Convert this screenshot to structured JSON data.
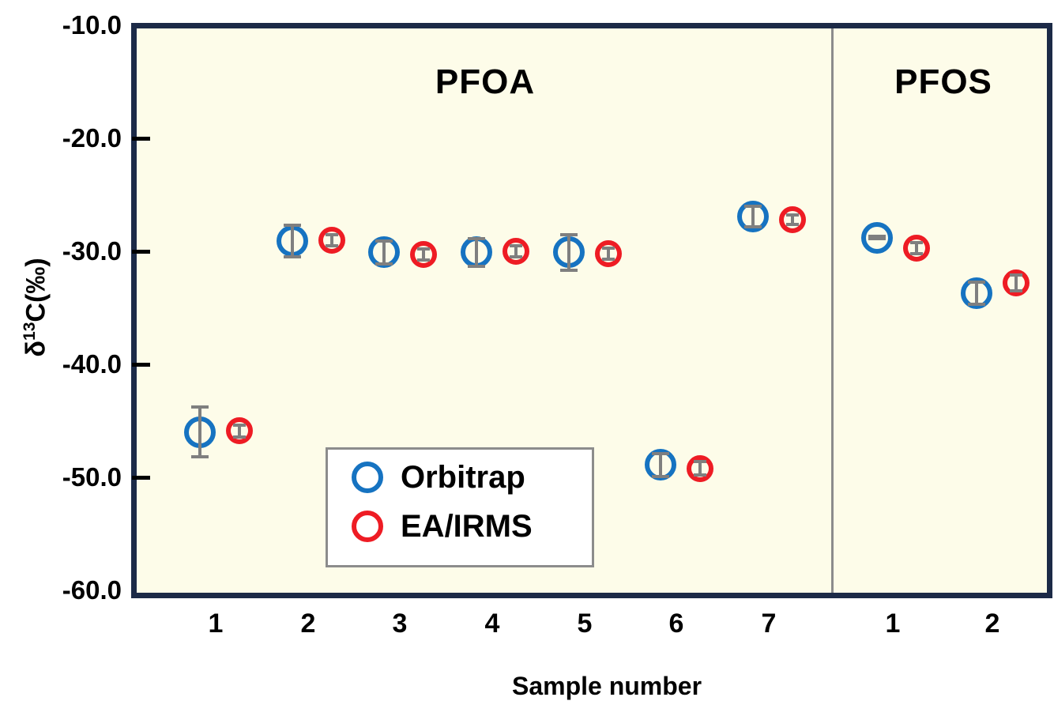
{
  "chart_data": {
    "type": "scatter",
    "xlabel": "Sample number",
    "ylabel": "δ13C(‰)",
    "ylabel_parts": {
      "delta": "δ",
      "superscript": "13",
      "rest": "C(‰)"
    },
    "ylim": [
      -60.0,
      -10.0
    ],
    "grid": false,
    "legend_position": "inside-lower-left",
    "yticks": [
      {
        "value": -10,
        "label": "-10.0"
      },
      {
        "value": -20,
        "label": "-20.0"
      },
      {
        "value": -30,
        "label": "-30.0"
      },
      {
        "value": -40,
        "label": "-40.0"
      },
      {
        "value": -50,
        "label": "-50.0"
      },
      {
        "value": -60,
        "label": "-60.0"
      }
    ],
    "groups": [
      {
        "name": "PFOA",
        "samples": [
          "1",
          "2",
          "3",
          "4",
          "5",
          "6",
          "7"
        ]
      },
      {
        "name": "PFOS",
        "samples": [
          "1",
          "2"
        ]
      }
    ],
    "series": [
      {
        "name": "Orbitrap",
        "color": "#1673C1",
        "points": [
          {
            "group": "PFOA",
            "sample": "1",
            "y": -46.0,
            "err": 2.2
          },
          {
            "group": "PFOA",
            "sample": "2",
            "y": -29.1,
            "err": 1.4
          },
          {
            "group": "PFOA",
            "sample": "3",
            "y": -30.1,
            "err": 1.0
          },
          {
            "group": "PFOA",
            "sample": "4",
            "y": -30.1,
            "err": 1.2
          },
          {
            "group": "PFOA",
            "sample": "5",
            "y": -30.1,
            "err": 1.6
          },
          {
            "group": "PFOA",
            "sample": "6",
            "y": -48.9,
            "err": 1.0
          },
          {
            "group": "PFOA",
            "sample": "7",
            "y": -26.9,
            "err": 0.9
          },
          {
            "group": "PFOS",
            "sample": "1",
            "y": -28.8,
            "err": 0.1
          },
          {
            "group": "PFOS",
            "sample": "2",
            "y": -33.7,
            "err": 1.0
          }
        ]
      },
      {
        "name": "EA/IRMS",
        "color": "#EE1C24",
        "points": [
          {
            "group": "PFOA",
            "sample": "1",
            "y": -45.9,
            "err": 0.5
          },
          {
            "group": "PFOA",
            "sample": "2",
            "y": -29.0,
            "err": 0.5
          },
          {
            "group": "PFOA",
            "sample": "3",
            "y": -30.3,
            "err": 0.5
          },
          {
            "group": "PFOA",
            "sample": "4",
            "y": -30.0,
            "err": 0.5
          },
          {
            "group": "PFOA",
            "sample": "5",
            "y": -30.2,
            "err": 0.5
          },
          {
            "group": "PFOA",
            "sample": "6",
            "y": -49.2,
            "err": 0.6
          },
          {
            "group": "PFOA",
            "sample": "7",
            "y": -27.2,
            "err": 0.4
          },
          {
            "group": "PFOS",
            "sample": "1",
            "y": -29.7,
            "err": 0.5
          },
          {
            "group": "PFOS",
            "sample": "2",
            "y": -32.8,
            "err": 0.7
          }
        ]
      }
    ],
    "colors": {
      "plot_bg": "#FDFCE9",
      "frame": "#1C2A47",
      "divider": "#8C8C8C",
      "error_bar": "#7F7F7F",
      "tick": "#000000",
      "legend_border": "#8C8C8C",
      "legend_bg": "#FFFFFF"
    }
  }
}
